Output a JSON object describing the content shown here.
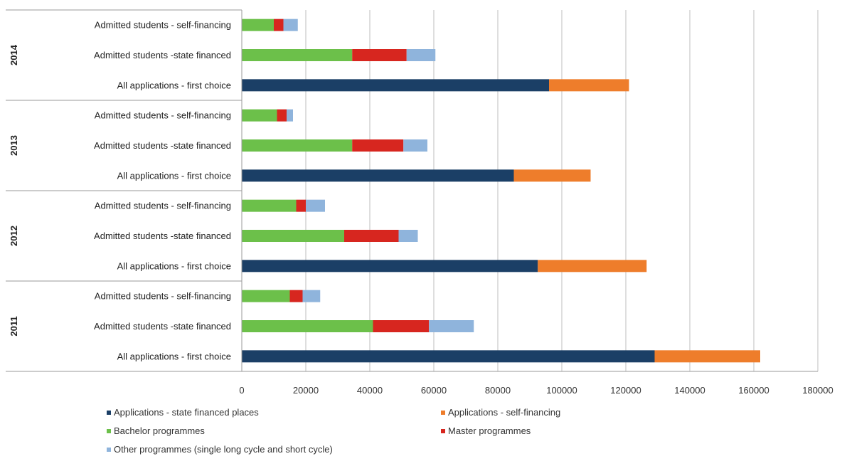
{
  "chart_data": {
    "type": "bar",
    "orientation": "horizontal",
    "stacked": true,
    "title": "",
    "xlabel": "",
    "ylabel": "",
    "xlim": [
      0,
      180000
    ],
    "x_ticks": [
      0,
      20000,
      40000,
      60000,
      80000,
      100000,
      120000,
      140000,
      160000,
      180000
    ],
    "grid": true,
    "legend_position": "bottom",
    "groups": [
      {
        "label": "2014",
        "categories": [
          "Admitted students - self-financing",
          "Admitted students -state financed",
          "All applications - first choice"
        ]
      },
      {
        "label": "2013",
        "categories": [
          "Admitted students - self-financing",
          "Admitted students -state financed",
          "All applications - first choice"
        ]
      },
      {
        "label": "2012",
        "categories": [
          "Admitted students - self-financing",
          "Admitted students -state financed",
          "All applications - first choice"
        ]
      },
      {
        "label": "2011",
        "categories": [
          "Admitted students - self-financing",
          "Admitted students -state financed",
          "All applications - first choice"
        ]
      }
    ],
    "series": [
      {
        "name": "Applications - state financed places",
        "color": "#1b3f66",
        "values": [
          0,
          0,
          96000,
          0,
          0,
          85000,
          0,
          0,
          92500,
          0,
          0,
          129000
        ]
      },
      {
        "name": "Applications - self-financing",
        "color": "#ee7d2b",
        "values": [
          0,
          0,
          25000,
          0,
          0,
          24000,
          0,
          0,
          34000,
          0,
          0,
          33000
        ]
      },
      {
        "name": "Bachelor programmes",
        "color": "#6cc04a",
        "values": [
          10000,
          34500,
          0,
          11000,
          34500,
          0,
          17000,
          32000,
          0,
          15000,
          41000,
          0
        ]
      },
      {
        "name": "Master programmes",
        "color": "#d7261f",
        "values": [
          3000,
          17000,
          0,
          3000,
          16000,
          0,
          3000,
          17000,
          0,
          4000,
          17500,
          0
        ]
      },
      {
        "name": "Other programmes (single long cycle and short cycle)",
        "color": "#8fb4dc",
        "values": [
          4500,
          9000,
          0,
          2000,
          7500,
          0,
          6000,
          6000,
          0,
          5500,
          14000,
          0
        ]
      }
    ]
  }
}
